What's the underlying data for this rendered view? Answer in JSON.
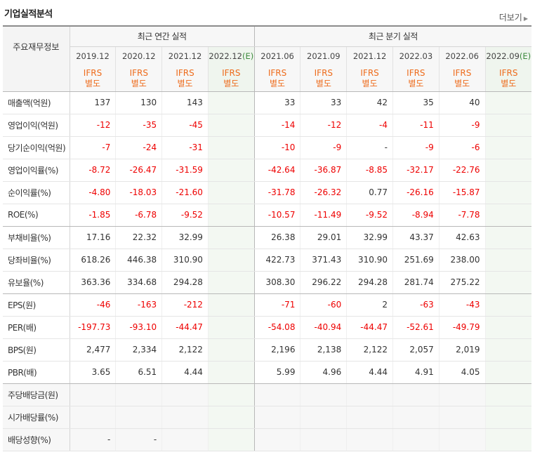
{
  "header": {
    "title": "기업실적분석",
    "more_label": "더보기"
  },
  "table": {
    "corner_label": "주요재무정보",
    "groups": {
      "annual": "최근 연간 실적",
      "quarter": "최근 분기 실적"
    },
    "annual_periods": [
      "2019.12",
      "2020.12",
      "2021.12",
      "2022.12"
    ],
    "quarter_periods": [
      "2021.06",
      "2021.09",
      "2021.12",
      "2022.03",
      "2022.06",
      "2022.09"
    ],
    "estimate_mark": "(E)",
    "ifrs_line1": "IFRS",
    "ifrs_line2": "별도",
    "rows": [
      {
        "label": "매출액(억원)",
        "annual": [
          "137",
          "130",
          "143",
          ""
        ],
        "quarter": [
          "33",
          "33",
          "42",
          "35",
          "40",
          ""
        ]
      },
      {
        "label": "영업이익(억원)",
        "annual": [
          "-12",
          "-35",
          "-45",
          ""
        ],
        "quarter": [
          "-14",
          "-12",
          "-4",
          "-11",
          "-9",
          ""
        ]
      },
      {
        "label": "당기순이익(억원)",
        "annual": [
          "-7",
          "-24",
          "-31",
          ""
        ],
        "quarter": [
          "-10",
          "-9",
          "-",
          "-9",
          "-6",
          ""
        ]
      },
      {
        "label": "영업이익률(%)",
        "annual": [
          "-8.72",
          "-26.47",
          "-31.59",
          ""
        ],
        "quarter": [
          "-42.64",
          "-36.87",
          "-8.85",
          "-32.17",
          "-22.76",
          ""
        ]
      },
      {
        "label": "순이익률(%)",
        "annual": [
          "-4.80",
          "-18.03",
          "-21.60",
          ""
        ],
        "quarter": [
          "-31.78",
          "-26.32",
          "0.77",
          "-26.16",
          "-15.87",
          ""
        ]
      },
      {
        "label": "ROE(%)",
        "annual": [
          "-1.85",
          "-6.78",
          "-9.52",
          ""
        ],
        "quarter": [
          "-10.57",
          "-11.49",
          "-9.52",
          "-8.94",
          "-7.78",
          ""
        ]
      },
      {
        "label": "부채비율(%)",
        "annual": [
          "17.16",
          "22.32",
          "32.99",
          ""
        ],
        "quarter": [
          "26.38",
          "29.01",
          "32.99",
          "43.37",
          "42.63",
          ""
        ]
      },
      {
        "label": "당좌비율(%)",
        "annual": [
          "618.26",
          "446.38",
          "310.90",
          ""
        ],
        "quarter": [
          "422.73",
          "371.43",
          "310.90",
          "251.69",
          "238.00",
          ""
        ]
      },
      {
        "label": "유보율(%)",
        "annual": [
          "363.36",
          "334.68",
          "294.28",
          ""
        ],
        "quarter": [
          "308.30",
          "296.22",
          "294.28",
          "281.74",
          "275.22",
          ""
        ]
      },
      {
        "label": "EPS(원)",
        "annual": [
          "-46",
          "-163",
          "-212",
          ""
        ],
        "quarter": [
          "-71",
          "-60",
          "2",
          "-63",
          "-43",
          ""
        ]
      },
      {
        "label": "PER(배)",
        "annual": [
          "-197.73",
          "-93.10",
          "-44.47",
          ""
        ],
        "quarter": [
          "-54.08",
          "-40.94",
          "-44.47",
          "-52.61",
          "-49.79",
          ""
        ]
      },
      {
        "label": "BPS(원)",
        "annual": [
          "2,477",
          "2,334",
          "2,122",
          ""
        ],
        "quarter": [
          "2,196",
          "2,138",
          "2,122",
          "2,057",
          "2,019",
          ""
        ]
      },
      {
        "label": "PBR(배)",
        "annual": [
          "3.65",
          "6.51",
          "4.44",
          ""
        ],
        "quarter": [
          "5.99",
          "4.96",
          "4.44",
          "4.91",
          "4.05",
          ""
        ]
      },
      {
        "label": "주당배당금(원)",
        "annual": [
          "",
          "",
          "",
          ""
        ],
        "quarter": [
          "",
          "",
          "",
          "",
          "",
          ""
        ]
      },
      {
        "label": "시가배당률(%)",
        "annual": [
          "",
          "",
          "",
          ""
        ],
        "quarter": [
          "",
          "",
          "",
          "",
          "",
          ""
        ]
      },
      {
        "label": "배당성향(%)",
        "annual": [
          "-",
          "-",
          "",
          ""
        ],
        "quarter": [
          "",
          "",
          "",
          "",
          "",
          ""
        ]
      }
    ]
  },
  "colors": {
    "negative": "#ee0000",
    "ifrs_orange": "#ee6b1b",
    "estimate_bg": "#eff5ee",
    "estimate_mark": "#3d8a3d"
  }
}
